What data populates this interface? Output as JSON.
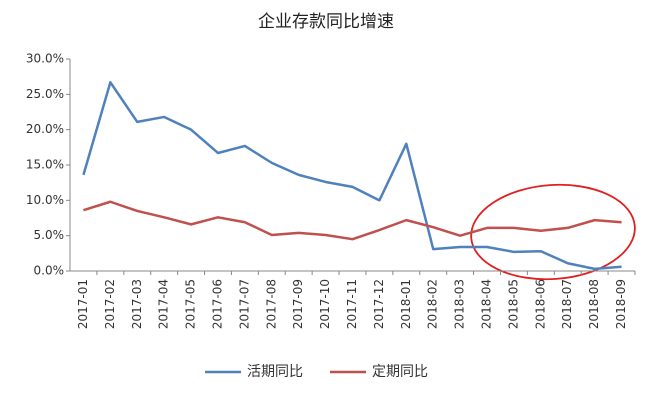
{
  "chart_data": {
    "type": "line",
    "title": "企业存款同比增速",
    "categories": [
      "2017-01",
      "2017-02",
      "2017-03",
      "2017-04",
      "2017-05",
      "2017-06",
      "2017-07",
      "2017-08",
      "2017-09",
      "2017-10",
      "2017-11",
      "2017-12",
      "2018-01",
      "2018-02",
      "2018-03",
      "2018-04",
      "2018-05",
      "2018-06",
      "2018-07",
      "2018-08",
      "2018-09"
    ],
    "series": [
      {
        "name": "活期同比",
        "color": "#4f81bd",
        "values": [
          13.6,
          26.7,
          21.1,
          21.8,
          20.0,
          16.7,
          17.7,
          15.3,
          13.6,
          12.6,
          11.9,
          10.0,
          18.0,
          3.1,
          3.4,
          3.4,
          2.7,
          2.8,
          1.1,
          0.3,
          0.6
        ]
      },
      {
        "name": "定期同比",
        "color": "#c0504d",
        "values": [
          8.6,
          9.8,
          8.5,
          7.6,
          6.6,
          7.6,
          6.9,
          5.1,
          5.4,
          5.1,
          4.5,
          5.8,
          7.2,
          6.2,
          5.0,
          6.1,
          6.1,
          5.7,
          6.1,
          7.2,
          6.9
        ]
      }
    ],
    "ylim": [
      0,
      30
    ],
    "yticks": [
      {
        "value": 0,
        "label": "0.0%"
      },
      {
        "value": 5,
        "label": "5.0%"
      },
      {
        "value": 10,
        "label": "10.0%"
      },
      {
        "value": 15,
        "label": "15.0%"
      },
      {
        "value": 20,
        "label": "20.0%"
      },
      {
        "value": 25,
        "label": "25.0%"
      },
      {
        "value": 30,
        "label": "30.0%"
      }
    ],
    "grid": false,
    "legend": "bottom"
  }
}
